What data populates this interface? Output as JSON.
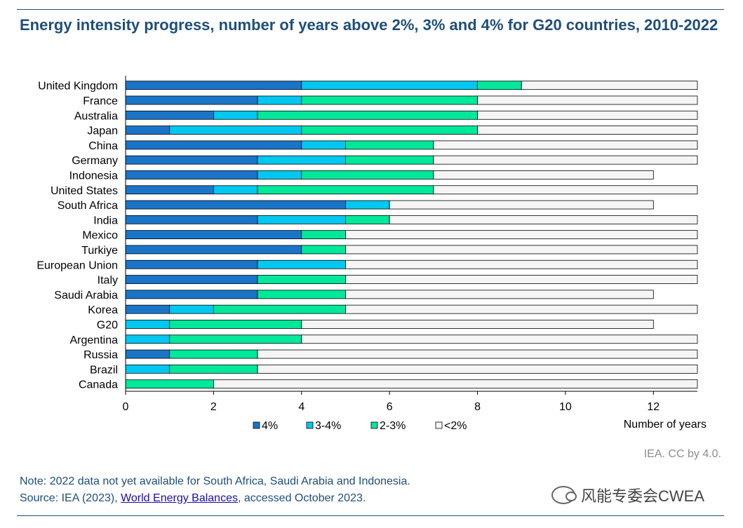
{
  "page": {
    "title": "Energy intensity progress, number of years above 2%, 3% and 4% for G20 countries, 2010-2022",
    "credit": "IEA. CC by 4.0.",
    "note_line1": "Note: 2022 data not yet available for South Africa, Saudi Arabia and Indonesia.",
    "source_prefix": "Source: IEA (2023), ",
    "source_link": "World Energy Balances",
    "source_suffix": ", accessed October 2023.",
    "watermark": "风能专委会CWEA"
  },
  "colors": {
    "4pct": "#1a75c8",
    "3to4pct": "#00c8f0",
    "2to3pct": "#00e89a",
    "lt2pct": "#f5f5f5"
  },
  "chart_data": {
    "type": "bar",
    "orientation": "horizontal",
    "stacked": true,
    "categories": [
      "United Kingdom",
      "France",
      "Australia",
      "Japan",
      "China",
      "Germany",
      "Indonesia",
      "United States",
      "South Africa",
      "India",
      "Mexico",
      "Turkiye",
      "European Union",
      "Italy",
      "Saudi Arabia",
      "Korea",
      "G20",
      "Argentina",
      "Russia",
      "Brazil",
      "Canada"
    ],
    "series": [
      {
        "name": "4%",
        "values": [
          4,
          3,
          2,
          1,
          4,
          3,
          3,
          2,
          5,
          3,
          4,
          4,
          3,
          3,
          3,
          1,
          0,
          0,
          1,
          0,
          0
        ]
      },
      {
        "name": "3-4%",
        "values": [
          4,
          1,
          1,
          3,
          1,
          2,
          1,
          1,
          1,
          2,
          0,
          0,
          2,
          0,
          0,
          1,
          1,
          1,
          0,
          1,
          0
        ]
      },
      {
        "name": "2-3%",
        "values": [
          1,
          4,
          5,
          4,
          2,
          2,
          3,
          4,
          0,
          1,
          1,
          1,
          0,
          2,
          2,
          3,
          3,
          3,
          2,
          2,
          2
        ]
      },
      {
        "name": "<2%",
        "values": [
          4,
          5,
          5,
          5,
          6,
          6,
          5,
          6,
          6,
          7,
          8,
          8,
          8,
          8,
          7,
          8,
          8,
          9,
          10,
          10,
          11
        ]
      }
    ],
    "xlabel": "Number of years",
    "ylabel": "",
    "xlim": [
      0,
      13
    ],
    "xticks": [
      0,
      2,
      4,
      6,
      8,
      10,
      12
    ],
    "grid": false,
    "legend_position": "bottom"
  }
}
